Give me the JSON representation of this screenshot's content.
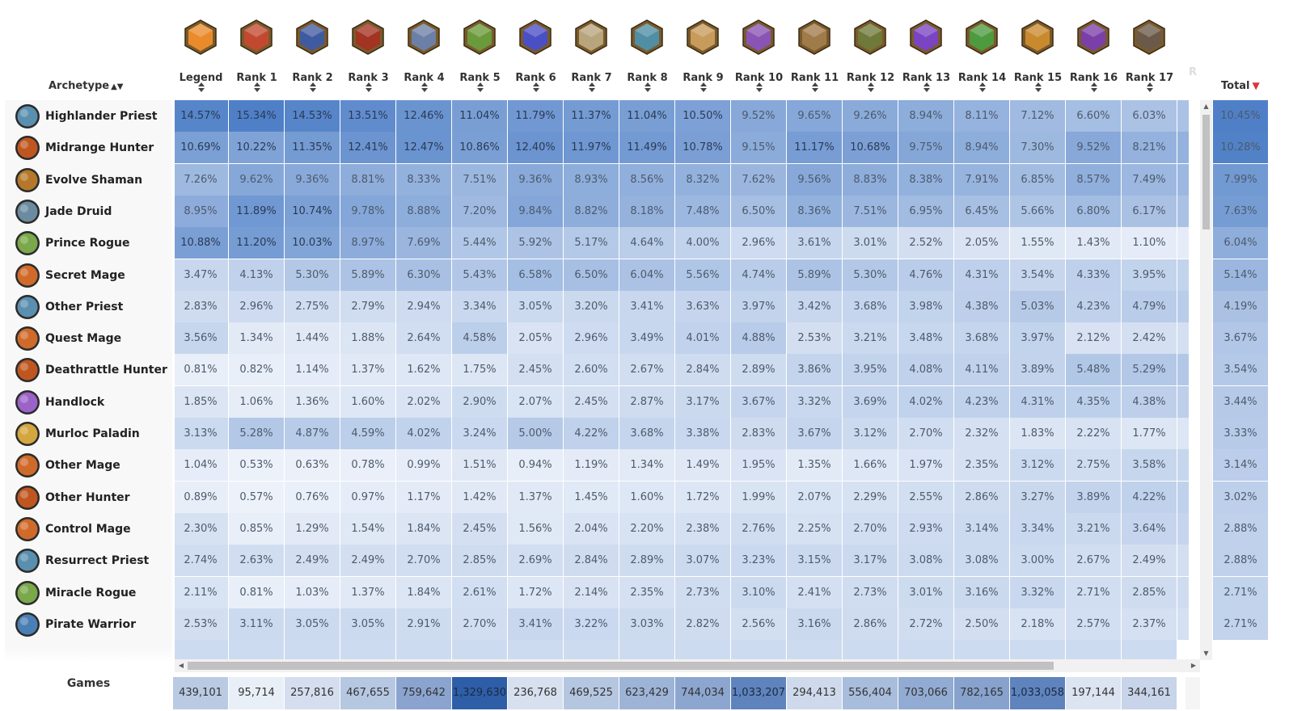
{
  "header": {
    "archetype_label": "Archetype",
    "archetype_sort_glyph": "▲▼",
    "total_label": "Total",
    "total_sort_glyph": "▼",
    "faded_next_rank": "R"
  },
  "colors": {
    "accent_sort_desc": "#d9363e",
    "heat_low": "#f7f9fd",
    "heat_high": "#4f80c7",
    "games_high": "#2f5ea8"
  },
  "ranks": [
    {
      "label": "Legend",
      "icon": "legend-gem-icon",
      "color": "#e98b2b"
    },
    {
      "label": "Rank 1",
      "icon": "rank-1-portrait-icon",
      "color": "#c2492f"
    },
    {
      "label": "Rank 2",
      "icon": "rank-2-portrait-icon",
      "color": "#3f5ba0"
    },
    {
      "label": "Rank 3",
      "icon": "rank-3-portrait-icon",
      "color": "#a33322"
    },
    {
      "label": "Rank 4",
      "icon": "rank-4-portrait-icon",
      "color": "#6c7fa6"
    },
    {
      "label": "Rank 5",
      "icon": "rank-5-portrait-icon",
      "color": "#6a9a3b"
    },
    {
      "label": "Rank 6",
      "icon": "rank-6-portrait-icon",
      "color": "#4a4fc4"
    },
    {
      "label": "Rank 7",
      "icon": "rank-7-portrait-icon",
      "color": "#b8a57e"
    },
    {
      "label": "Rank 8",
      "icon": "rank-8-portrait-icon",
      "color": "#4f8ea3"
    },
    {
      "label": "Rank 9",
      "icon": "rank-9-portrait-icon",
      "color": "#c79b5b"
    },
    {
      "label": "Rank 10",
      "icon": "rank-10-portrait-icon",
      "color": "#8a54b5"
    },
    {
      "label": "Rank 11",
      "icon": "rank-11-portrait-icon",
      "color": "#a07b4a"
    },
    {
      "label": "Rank 12",
      "icon": "rank-12-portrait-icon",
      "color": "#6f7a3a"
    },
    {
      "label": "Rank 13",
      "icon": "rank-13-portrait-icon",
      "color": "#7a44c2"
    },
    {
      "label": "Rank 14",
      "icon": "rank-14-portrait-icon",
      "color": "#4e9a3f"
    },
    {
      "label": "Rank 15",
      "icon": "rank-15-portrait-icon",
      "color": "#c98a2e"
    },
    {
      "label": "Rank 16",
      "icon": "rank-16-portrait-icon",
      "color": "#7b3fa8"
    },
    {
      "label": "Rank 17",
      "icon": "rank-17-portrait-icon",
      "color": "#6b5a4a"
    }
  ],
  "rows": [
    {
      "name": "Highlander Priest",
      "icon": "priest-class-icon",
      "icon_color": "#5a8fb0",
      "values": [
        "14.57%",
        "15.34%",
        "14.53%",
        "13.51%",
        "12.46%",
        "11.04%",
        "11.79%",
        "11.37%",
        "11.04%",
        "10.50%",
        "9.52%",
        "9.65%",
        "9.26%",
        "8.94%",
        "8.11%",
        "7.12%",
        "6.60%",
        "6.03%"
      ],
      "total": "10.45%"
    },
    {
      "name": "Midrange Hunter",
      "icon": "hunter-class-icon",
      "icon_color": "#c0561f",
      "values": [
        "10.69%",
        "10.22%",
        "11.35%",
        "12.41%",
        "12.47%",
        "10.86%",
        "12.40%",
        "11.97%",
        "11.49%",
        "10.78%",
        "9.15%",
        "11.17%",
        "10.68%",
        "9.75%",
        "8.94%",
        "7.30%",
        "9.52%",
        "8.21%"
      ],
      "total": "10.28%"
    },
    {
      "name": "Evolve Shaman",
      "icon": "shaman-class-icon",
      "icon_color": "#b5782a",
      "values": [
        "7.26%",
        "9.62%",
        "9.36%",
        "8.81%",
        "8.33%",
        "7.51%",
        "9.36%",
        "8.93%",
        "8.56%",
        "8.32%",
        "7.62%",
        "9.56%",
        "8.83%",
        "8.38%",
        "7.91%",
        "6.85%",
        "8.57%",
        "7.49%"
      ],
      "total": "7.99%"
    },
    {
      "name": "Jade Druid",
      "icon": "druid-class-icon",
      "icon_color": "#6b8ca0",
      "values": [
        "8.95%",
        "11.89%",
        "10.74%",
        "9.78%",
        "8.88%",
        "7.20%",
        "9.84%",
        "8.82%",
        "8.18%",
        "7.48%",
        "6.50%",
        "8.36%",
        "7.51%",
        "6.95%",
        "6.45%",
        "5.66%",
        "6.80%",
        "6.17%"
      ],
      "total": "7.63%"
    },
    {
      "name": "Prince Rogue",
      "icon": "rogue-class-icon",
      "icon_color": "#7aa84a",
      "values": [
        "10.88%",
        "11.20%",
        "10.03%",
        "8.97%",
        "7.69%",
        "5.44%",
        "5.92%",
        "5.17%",
        "4.64%",
        "4.00%",
        "2.96%",
        "3.61%",
        "3.01%",
        "2.52%",
        "2.05%",
        "1.55%",
        "1.43%",
        "1.10%"
      ],
      "total": "6.04%"
    },
    {
      "name": "Secret Mage",
      "icon": "mage-class-icon",
      "icon_color": "#d06a2a",
      "values": [
        "3.47%",
        "4.13%",
        "5.30%",
        "5.89%",
        "6.30%",
        "5.43%",
        "6.58%",
        "6.50%",
        "6.04%",
        "5.56%",
        "4.74%",
        "5.89%",
        "5.30%",
        "4.76%",
        "4.31%",
        "3.54%",
        "4.33%",
        "3.95%"
      ],
      "total": "5.14%"
    },
    {
      "name": "Other Priest",
      "icon": "priest-class-icon",
      "icon_color": "#5a8fb0",
      "values": [
        "2.83%",
        "2.96%",
        "2.75%",
        "2.79%",
        "2.94%",
        "3.34%",
        "3.05%",
        "3.20%",
        "3.41%",
        "3.63%",
        "3.97%",
        "3.42%",
        "3.68%",
        "3.98%",
        "4.38%",
        "5.03%",
        "4.23%",
        "4.79%"
      ],
      "total": "4.19%"
    },
    {
      "name": "Quest Mage",
      "icon": "mage-class-icon",
      "icon_color": "#d06a2a",
      "values": [
        "3.56%",
        "1.34%",
        "1.44%",
        "1.88%",
        "2.64%",
        "4.58%",
        "2.05%",
        "2.96%",
        "3.49%",
        "4.01%",
        "4.88%",
        "2.53%",
        "3.21%",
        "3.48%",
        "3.68%",
        "3.97%",
        "2.12%",
        "2.42%"
      ],
      "total": "3.67%"
    },
    {
      "name": "Deathrattle Hunter",
      "icon": "hunter-class-icon",
      "icon_color": "#c0561f",
      "values": [
        "0.81%",
        "0.82%",
        "1.14%",
        "1.37%",
        "1.62%",
        "1.75%",
        "2.45%",
        "2.60%",
        "2.67%",
        "2.84%",
        "2.89%",
        "3.86%",
        "3.95%",
        "4.08%",
        "4.11%",
        "3.89%",
        "5.48%",
        "5.29%"
      ],
      "total": "3.54%"
    },
    {
      "name": "Handlock",
      "icon": "warlock-class-icon",
      "icon_color": "#9b62c8",
      "values": [
        "1.85%",
        "1.06%",
        "1.36%",
        "1.60%",
        "2.02%",
        "2.90%",
        "2.07%",
        "2.45%",
        "2.87%",
        "3.17%",
        "3.67%",
        "3.32%",
        "3.69%",
        "4.02%",
        "4.23%",
        "4.31%",
        "4.35%",
        "4.38%"
      ],
      "total": "3.44%"
    },
    {
      "name": "Murloc Paladin",
      "icon": "paladin-class-icon",
      "icon_color": "#d4a640",
      "values": [
        "3.13%",
        "5.28%",
        "4.87%",
        "4.59%",
        "4.02%",
        "3.24%",
        "5.00%",
        "4.22%",
        "3.68%",
        "3.38%",
        "2.83%",
        "3.67%",
        "3.12%",
        "2.70%",
        "2.32%",
        "1.83%",
        "2.22%",
        "1.77%"
      ],
      "total": "3.33%"
    },
    {
      "name": "Other Mage",
      "icon": "mage-class-icon",
      "icon_color": "#d06a2a",
      "values": [
        "1.04%",
        "0.53%",
        "0.63%",
        "0.78%",
        "0.99%",
        "1.51%",
        "0.94%",
        "1.19%",
        "1.34%",
        "1.49%",
        "1.95%",
        "1.35%",
        "1.66%",
        "1.97%",
        "2.35%",
        "3.12%",
        "2.75%",
        "3.58%"
      ],
      "total": "3.14%"
    },
    {
      "name": "Other Hunter",
      "icon": "hunter-class-icon",
      "icon_color": "#c0561f",
      "values": [
        "0.89%",
        "0.57%",
        "0.76%",
        "0.97%",
        "1.17%",
        "1.42%",
        "1.37%",
        "1.45%",
        "1.60%",
        "1.72%",
        "1.99%",
        "2.07%",
        "2.29%",
        "2.55%",
        "2.86%",
        "3.27%",
        "3.89%",
        "4.22%"
      ],
      "total": "3.02%"
    },
    {
      "name": "Control Mage",
      "icon": "mage-class-icon",
      "icon_color": "#d06a2a",
      "values": [
        "2.30%",
        "0.85%",
        "1.29%",
        "1.54%",
        "1.84%",
        "2.45%",
        "1.56%",
        "2.04%",
        "2.20%",
        "2.38%",
        "2.76%",
        "2.25%",
        "2.70%",
        "2.93%",
        "3.14%",
        "3.34%",
        "3.21%",
        "3.64%"
      ],
      "total": "2.88%"
    },
    {
      "name": "Resurrect Priest",
      "icon": "priest-class-icon",
      "icon_color": "#5a8fb0",
      "values": [
        "2.74%",
        "2.63%",
        "2.49%",
        "2.49%",
        "2.70%",
        "2.85%",
        "2.69%",
        "2.84%",
        "2.89%",
        "3.07%",
        "3.23%",
        "3.15%",
        "3.17%",
        "3.08%",
        "3.08%",
        "3.00%",
        "2.67%",
        "2.49%"
      ],
      "total": "2.88%"
    },
    {
      "name": "Miracle Rogue",
      "icon": "rogue-class-icon",
      "icon_color": "#7aa84a",
      "values": [
        "2.11%",
        "0.81%",
        "1.03%",
        "1.37%",
        "1.84%",
        "2.61%",
        "1.72%",
        "2.14%",
        "2.35%",
        "2.73%",
        "3.10%",
        "2.41%",
        "2.73%",
        "3.01%",
        "3.16%",
        "3.32%",
        "2.71%",
        "2.85%"
      ],
      "total": "2.71%"
    },
    {
      "name": "Pirate Warrior",
      "icon": "warrior-class-icon",
      "icon_color": "#4a7fb5",
      "values": [
        "2.53%",
        "3.11%",
        "3.05%",
        "3.05%",
        "2.91%",
        "2.70%",
        "3.41%",
        "3.22%",
        "3.03%",
        "2.82%",
        "2.56%",
        "3.16%",
        "2.86%",
        "2.72%",
        "2.50%",
        "2.18%",
        "2.57%",
        "2.37%"
      ],
      "total": "2.71%"
    }
  ],
  "games": {
    "label": "Games",
    "values": [
      "439,101",
      "95,714",
      "257,816",
      "467,655",
      "759,642",
      "1,329,630",
      "236,768",
      "469,525",
      "623,429",
      "744,034",
      "1,033,207",
      "294,413",
      "556,404",
      "703,066",
      "782,165",
      "1,033,058",
      "197,144",
      "344,161"
    ]
  }
}
